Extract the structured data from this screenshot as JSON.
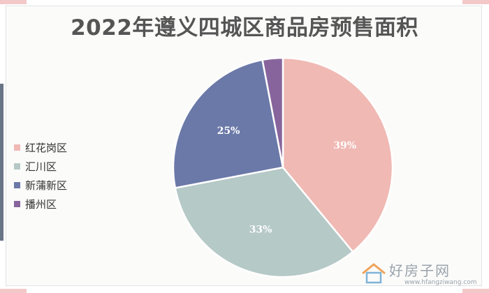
{
  "chart_data": {
    "type": "pie",
    "title": "2022年遵义四城区商品房预售面积",
    "categories": [
      "红花岗区",
      "汇川区",
      "新蒲新区",
      "播州区"
    ],
    "values": [
      39,
      33,
      25,
      3
    ],
    "data_labels": [
      "39%",
      "33%",
      "25%",
      ""
    ],
    "colors": [
      "#f0b9b4",
      "#b5c9c7",
      "#6b79a8",
      "#87659c"
    ],
    "legend_position": "left",
    "start_angle_deg": 0
  },
  "watermark": {
    "text": "好房子网",
    "url": "www.hfangziwang.com"
  }
}
